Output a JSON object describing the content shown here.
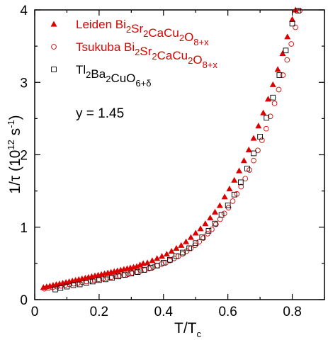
{
  "chart_data": {
    "type": "scatter",
    "xlim": [
      0,
      0.9
    ],
    "ylim": [
      0,
      4
    ],
    "x_ticks": [
      "0",
      "0.2",
      "0.4",
      "0.6",
      "0.8"
    ],
    "y_ticks": [
      "0",
      "1",
      "2",
      "3",
      "4"
    ],
    "xlabel": {
      "main": "T/T",
      "sub": "c"
    },
    "ylabel": {
      "main": "1/τ (10",
      "sup": "12",
      "mid": " s",
      "sup2": "-1",
      "end": ")"
    },
    "annotation": "y = 1.45",
    "grid": false,
    "legend_position": "top-left",
    "legend": [
      {
        "marker": "filled-triangle",
        "color": "#dd0000",
        "parts": [
          [
            "Leiden Bi",
            ""
          ],
          [
            "2",
            "sub"
          ],
          [
            "Sr",
            ""
          ],
          [
            "2",
            "sub"
          ],
          [
            "CaCu",
            ""
          ],
          [
            "2",
            "sub"
          ],
          [
            "O",
            ""
          ],
          [
            "8+x",
            "sub"
          ]
        ]
      },
      {
        "marker": "open-circle",
        "color": "#dd0000",
        "parts": [
          [
            "Tsukuba Bi",
            ""
          ],
          [
            "2",
            "sub"
          ],
          [
            "Sr",
            ""
          ],
          [
            "2",
            "sub"
          ],
          [
            "CaCu",
            ""
          ],
          [
            "2",
            "sub"
          ],
          [
            "O",
            ""
          ],
          [
            "8+x",
            "sub"
          ]
        ]
      },
      {
        "marker": "open-square",
        "color": "#000000",
        "parts": [
          [
            "Tl",
            ""
          ],
          [
            "2",
            "sub"
          ],
          [
            "Ba",
            ""
          ],
          [
            "2",
            "sub"
          ],
          [
            "CuO",
            ""
          ],
          [
            "6+δ",
            "sub"
          ]
        ]
      }
    ],
    "series": [
      {
        "name": "Leiden Bi2Sr2CaCu2O8+x",
        "marker": "filled-triangle",
        "color": "#dd0000",
        "points": [
          [
            0.027,
            0.17
          ],
          [
            0.037,
            0.18
          ],
          [
            0.047,
            0.19
          ],
          [
            0.057,
            0.2
          ],
          [
            0.067,
            0.21
          ],
          [
            0.077,
            0.22
          ],
          [
            0.087,
            0.23
          ],
          [
            0.097,
            0.24
          ],
          [
            0.107,
            0.25
          ],
          [
            0.117,
            0.26
          ],
          [
            0.127,
            0.27
          ],
          [
            0.137,
            0.28
          ],
          [
            0.147,
            0.29
          ],
          [
            0.157,
            0.3
          ],
          [
            0.167,
            0.31
          ],
          [
            0.177,
            0.32
          ],
          [
            0.187,
            0.33
          ],
          [
            0.197,
            0.34
          ],
          [
            0.207,
            0.35
          ],
          [
            0.217,
            0.36
          ],
          [
            0.227,
            0.37
          ],
          [
            0.237,
            0.38
          ],
          [
            0.247,
            0.39
          ],
          [
            0.257,
            0.4
          ],
          [
            0.267,
            0.41
          ],
          [
            0.277,
            0.42
          ],
          [
            0.287,
            0.43
          ],
          [
            0.297,
            0.44
          ],
          [
            0.307,
            0.45
          ],
          [
            0.317,
            0.46
          ],
          [
            0.327,
            0.48
          ],
          [
            0.337,
            0.5
          ],
          [
            0.35,
            0.51
          ],
          [
            0.365,
            0.54
          ],
          [
            0.38,
            0.57
          ],
          [
            0.395,
            0.6
          ],
          [
            0.41,
            0.63
          ],
          [
            0.425,
            0.67
          ],
          [
            0.44,
            0.71
          ],
          [
            0.455,
            0.75
          ],
          [
            0.47,
            0.8
          ],
          [
            0.485,
            0.86
          ],
          [
            0.5,
            0.92
          ],
          [
            0.515,
            0.98
          ],
          [
            0.53,
            1.05
          ],
          [
            0.545,
            1.13
          ],
          [
            0.56,
            1.21
          ],
          [
            0.575,
            1.3
          ],
          [
            0.59,
            1.42
          ],
          [
            0.605,
            1.53
          ],
          [
            0.62,
            1.65
          ],
          [
            0.635,
            1.78
          ],
          [
            0.65,
            1.92
          ],
          [
            0.665,
            2.07
          ],
          [
            0.68,
            2.23
          ],
          [
            0.695,
            2.4
          ],
          [
            0.71,
            2.58
          ],
          [
            0.725,
            2.77
          ],
          [
            0.74,
            2.97
          ],
          [
            0.755,
            3.18
          ],
          [
            0.77,
            3.4
          ],
          [
            0.785,
            3.63
          ],
          [
            0.8,
            3.87
          ],
          [
            0.81,
            4.0
          ]
        ]
      },
      {
        "name": "Tsukuba Bi2Sr2CaCu2O8+x",
        "marker": "open-circle",
        "color": "#dd0000",
        "points": [
          [
            0.03,
            0.15
          ],
          [
            0.043,
            0.16
          ],
          [
            0.056,
            0.17
          ],
          [
            0.069,
            0.18
          ],
          [
            0.082,
            0.19
          ],
          [
            0.095,
            0.2
          ],
          [
            0.108,
            0.21
          ],
          [
            0.121,
            0.22
          ],
          [
            0.134,
            0.23
          ],
          [
            0.147,
            0.24
          ],
          [
            0.16,
            0.25
          ],
          [
            0.173,
            0.26
          ],
          [
            0.186,
            0.27
          ],
          [
            0.199,
            0.28
          ],
          [
            0.212,
            0.29
          ],
          [
            0.225,
            0.3
          ],
          [
            0.238,
            0.31
          ],
          [
            0.251,
            0.32
          ],
          [
            0.264,
            0.33
          ],
          [
            0.277,
            0.34
          ],
          [
            0.29,
            0.35
          ],
          [
            0.303,
            0.37
          ],
          [
            0.316,
            0.38
          ],
          [
            0.329,
            0.4
          ],
          [
            0.342,
            0.41
          ],
          [
            0.355,
            0.43
          ],
          [
            0.368,
            0.45
          ],
          [
            0.381,
            0.47
          ],
          [
            0.394,
            0.49
          ],
          [
            0.407,
            0.51
          ],
          [
            0.42,
            0.54
          ],
          [
            0.433,
            0.57
          ],
          [
            0.446,
            0.6
          ],
          [
            0.459,
            0.63
          ],
          [
            0.472,
            0.67
          ],
          [
            0.485,
            0.71
          ],
          [
            0.498,
            0.75
          ],
          [
            0.511,
            0.8
          ],
          [
            0.524,
            0.85
          ],
          [
            0.537,
            0.91
          ],
          [
            0.55,
            0.97
          ],
          [
            0.563,
            1.04
          ],
          [
            0.576,
            1.11
          ],
          [
            0.589,
            1.19
          ],
          [
            0.602,
            1.27
          ],
          [
            0.615,
            1.36
          ],
          [
            0.628,
            1.46
          ],
          [
            0.641,
            1.56
          ],
          [
            0.654,
            1.67
          ],
          [
            0.667,
            1.79
          ],
          [
            0.68,
            1.92
          ],
          [
            0.693,
            2.06
          ],
          [
            0.706,
            2.2
          ],
          [
            0.719,
            2.36
          ],
          [
            0.732,
            2.53
          ],
          [
            0.745,
            2.71
          ],
          [
            0.758,
            2.9
          ],
          [
            0.771,
            3.1
          ],
          [
            0.784,
            3.31
          ],
          [
            0.797,
            3.53
          ],
          [
            0.81,
            3.76
          ],
          [
            0.823,
            3.99
          ]
        ]
      },
      {
        "name": "Tl2Ba2CuO6+δ",
        "marker": "open-square",
        "color": "#000000",
        "points": [
          [
            0.064,
            0.14
          ],
          [
            0.08,
            0.16
          ],
          [
            0.1,
            0.18
          ],
          [
            0.12,
            0.2
          ],
          [
            0.14,
            0.21
          ],
          [
            0.16,
            0.23
          ],
          [
            0.18,
            0.25
          ],
          [
            0.2,
            0.27
          ],
          [
            0.22,
            0.28
          ],
          [
            0.24,
            0.3
          ],
          [
            0.26,
            0.32
          ],
          [
            0.28,
            0.34
          ],
          [
            0.3,
            0.36
          ],
          [
            0.32,
            0.38
          ],
          [
            0.34,
            0.41
          ],
          [
            0.36,
            0.44
          ],
          [
            0.38,
            0.47
          ],
          [
            0.4,
            0.51
          ],
          [
            0.42,
            0.55
          ],
          [
            0.44,
            0.6
          ],
          [
            0.46,
            0.65
          ],
          [
            0.48,
            0.71
          ],
          [
            0.5,
            0.78
          ],
          [
            0.52,
            0.86
          ],
          [
            0.54,
            0.95
          ],
          [
            0.56,
            1.05
          ],
          [
            0.58,
            1.17
          ],
          [
            0.6,
            1.3
          ],
          [
            0.62,
            1.45
          ],
          [
            0.64,
            1.62
          ],
          [
            0.66,
            1.81
          ],
          [
            0.68,
            2.02
          ],
          [
            0.7,
            2.25
          ],
          [
            0.72,
            2.51
          ],
          [
            0.74,
            2.79
          ],
          [
            0.76,
            3.1
          ],
          [
            0.78,
            3.44
          ],
          [
            0.8,
            3.81
          ],
          [
            0.818,
            3.99
          ]
        ]
      }
    ]
  }
}
